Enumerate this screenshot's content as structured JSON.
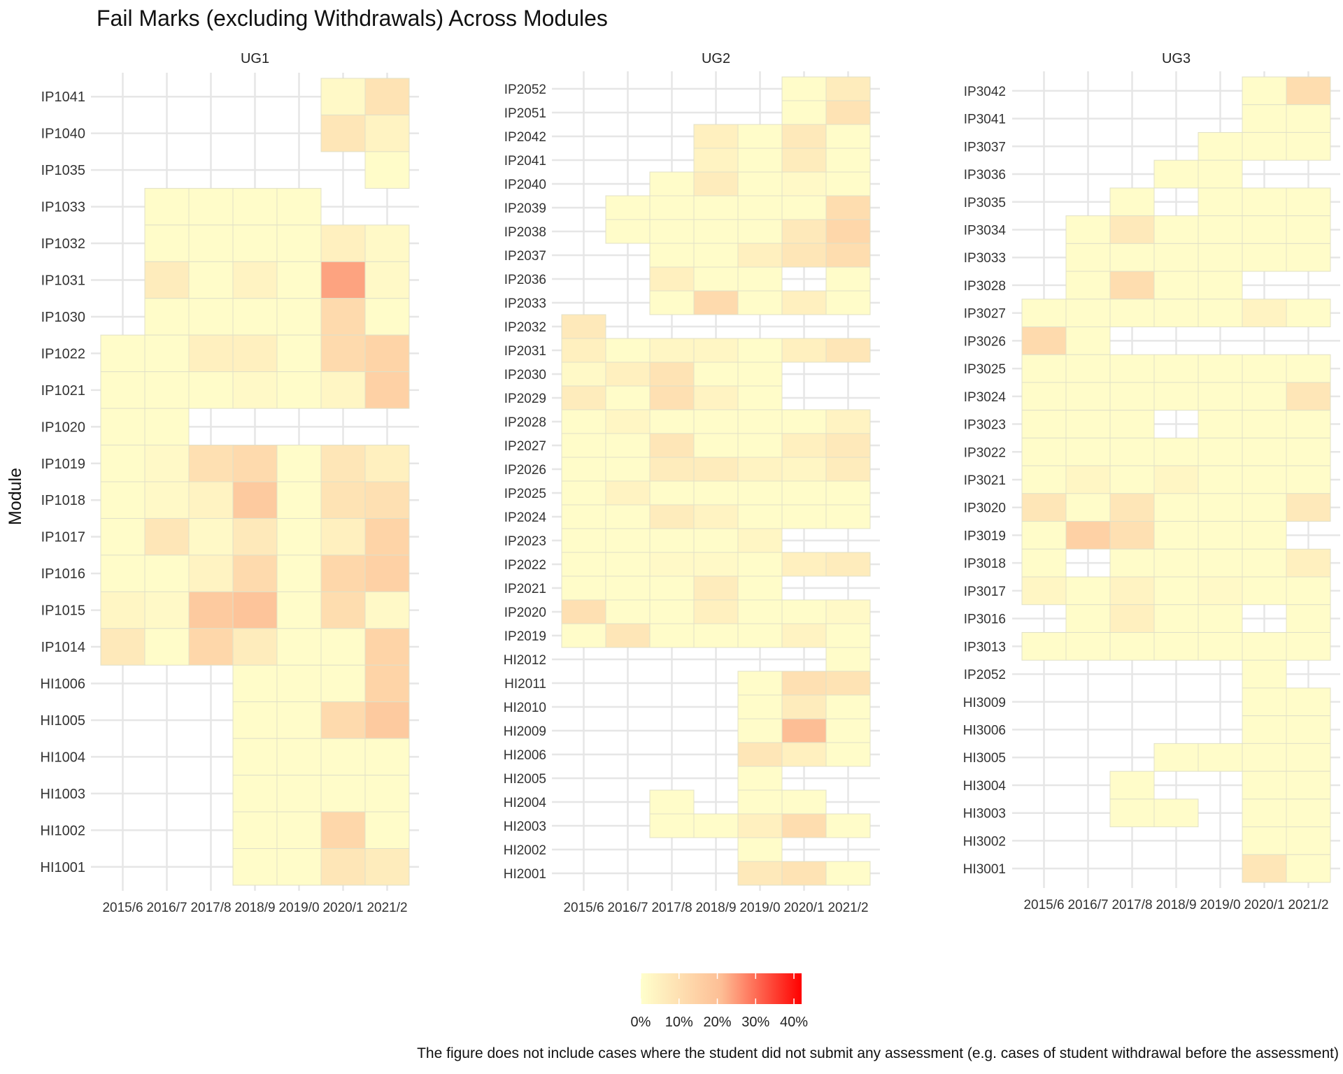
{
  "chart_data": {
    "type": "heatmap",
    "title": "Fail Marks (excluding Withdrawals) Across Modules",
    "ylabel": "Module",
    "xlabel": "",
    "caption": "The figure does not include cases where the student did not submit any assessment (e.g. cases of student withdrawal before the assessment)",
    "years": [
      "2015/6",
      "2016/7",
      "2017/8",
      "2018/9",
      "2019/0",
      "2020/1",
      "2021/2"
    ],
    "grid": true,
    "legend": {
      "position": "bottom",
      "labels": [
        "0%",
        "10%",
        "20%",
        "30%",
        "40%"
      ],
      "breaks": [
        0,
        10,
        20,
        30,
        40
      ],
      "limits": [
        0,
        42
      ],
      "colors": [
        "#ffffcc",
        "#fdbe95",
        "#ff0000"
      ]
    },
    "panels": [
      {
        "name": "UG1",
        "modules": [
          {
            "name": "IP1041",
            "values": [
              null,
              null,
              null,
              null,
              null,
              2,
              9
            ]
          },
          {
            "name": "IP1040",
            "values": [
              null,
              null,
              null,
              null,
              null,
              8,
              4
            ]
          },
          {
            "name": "IP1035",
            "values": [
              null,
              null,
              null,
              null,
              null,
              null,
              1
            ]
          },
          {
            "name": "IP1033",
            "values": [
              null,
              1,
              1,
              1,
              1,
              null,
              null
            ]
          },
          {
            "name": "IP1032",
            "values": [
              null,
              1,
              1,
              1,
              1,
              5,
              2
            ]
          },
          {
            "name": "IP1031",
            "values": [
              null,
              6,
              1,
              4,
              1,
              24,
              2
            ]
          },
          {
            "name": "IP1030",
            "values": [
              null,
              1,
              1,
              1,
              1,
              12,
              1
            ]
          },
          {
            "name": "IP1022",
            "values": [
              1,
              1,
              5,
              5,
              1,
              12,
              14
            ]
          },
          {
            "name": "IP1021",
            "values": [
              1,
              1,
              1,
              2,
              1,
              3,
              15
            ]
          },
          {
            "name": "IP1020",
            "values": [
              1,
              1,
              null,
              null,
              null,
              null,
              null
            ]
          },
          {
            "name": "IP1019",
            "values": [
              1,
              2,
              10,
              12,
              1,
              8,
              5
            ]
          },
          {
            "name": "IP1018",
            "values": [
              1,
              2,
              4,
              17,
              1,
              9,
              10
            ]
          },
          {
            "name": "IP1017",
            "values": [
              1,
              8,
              2,
              7,
              1,
              5,
              14
            ]
          },
          {
            "name": "IP1016",
            "values": [
              1,
              1,
              4,
              12,
              1,
              13,
              15
            ]
          },
          {
            "name": "IP1015",
            "values": [
              3,
              2,
              17,
              19,
              1,
              11,
              2
            ]
          },
          {
            "name": "IP1014",
            "values": [
              7,
              1,
              13,
              6,
              1,
              1,
              14
            ]
          },
          {
            "name": "HI1006",
            "values": [
              null,
              null,
              null,
              1,
              1,
              1,
              14
            ]
          },
          {
            "name": "HI1005",
            "values": [
              null,
              null,
              null,
              1,
              1,
              12,
              17
            ]
          },
          {
            "name": "HI1004",
            "values": [
              null,
              null,
              null,
              1,
              1,
              1,
              1
            ]
          },
          {
            "name": "HI1003",
            "values": [
              null,
              null,
              null,
              1,
              1,
              1,
              1
            ]
          },
          {
            "name": "HI1002",
            "values": [
              null,
              null,
              null,
              1,
              1,
              13,
              1
            ]
          },
          {
            "name": "HI1001",
            "values": [
              null,
              null,
              null,
              1,
              1,
              8,
              6
            ]
          }
        ]
      },
      {
        "name": "UG2",
        "modules": [
          {
            "name": "IP2052",
            "values": [
              null,
              null,
              null,
              null,
              null,
              1,
              6
            ]
          },
          {
            "name": "IP2051",
            "values": [
              null,
              null,
              null,
              null,
              null,
              1,
              9
            ]
          },
          {
            "name": "IP2042",
            "values": [
              null,
              null,
              null,
              5,
              1,
              7,
              1
            ]
          },
          {
            "name": "IP2041",
            "values": [
              null,
              null,
              null,
              4,
              1,
              6,
              1
            ]
          },
          {
            "name": "IP2040",
            "values": [
              null,
              null,
              1,
              6,
              1,
              2,
              1
            ]
          },
          {
            "name": "IP2039",
            "values": [
              null,
              1,
              1,
              1,
              1,
              1,
              11
            ]
          },
          {
            "name": "IP2038",
            "values": [
              null,
              1,
              1,
              1,
              1,
              7,
              13
            ]
          },
          {
            "name": "IP2037",
            "values": [
              null,
              null,
              1,
              1,
              5,
              8,
              11
            ]
          },
          {
            "name": "IP2036",
            "values": [
              null,
              null,
              5,
              1,
              1,
              null,
              1
            ]
          },
          {
            "name": "IP2033",
            "values": [
              null,
              null,
              1,
              12,
              1,
              5,
              1
            ]
          },
          {
            "name": "IP2032",
            "values": [
              7,
              null,
              null,
              null,
              null,
              null,
              null
            ]
          },
          {
            "name": "IP2031",
            "values": [
              5,
              1,
              3,
              3,
              1,
              5,
              8
            ]
          },
          {
            "name": "IP2030",
            "values": [
              2,
              5,
              9,
              1,
              1,
              null,
              null
            ]
          },
          {
            "name": "IP2029",
            "values": [
              6,
              1,
              10,
              4,
              1,
              null,
              null
            ]
          },
          {
            "name": "IP2028",
            "values": [
              1,
              3,
              1,
              1,
              1,
              1,
              4
            ]
          },
          {
            "name": "IP2027",
            "values": [
              1,
              1,
              8,
              1,
              1,
              5,
              7
            ]
          },
          {
            "name": "IP2026",
            "values": [
              1,
              1,
              6,
              6,
              4,
              3,
              6
            ]
          },
          {
            "name": "IP2025",
            "values": [
              1,
              4,
              1,
              1,
              1,
              1,
              1
            ]
          },
          {
            "name": "IP2024",
            "values": [
              1,
              1,
              6,
              4,
              1,
              1,
              1
            ]
          },
          {
            "name": "IP2023",
            "values": [
              1,
              1,
              1,
              1,
              3,
              null,
              null
            ]
          },
          {
            "name": "IP2022",
            "values": [
              1,
              1,
              2,
              2,
              1,
              5,
              6
            ]
          },
          {
            "name": "IP2021",
            "values": [
              1,
              1,
              1,
              6,
              1,
              null,
              null
            ]
          },
          {
            "name": "IP2020",
            "values": [
              10,
              1,
              1,
              5,
              1,
              1,
              2
            ]
          },
          {
            "name": "IP2019",
            "values": [
              1,
              8,
              1,
              1,
              1,
              4,
              1
            ]
          },
          {
            "name": "HI2012",
            "values": [
              null,
              null,
              null,
              null,
              null,
              null,
              1
            ]
          },
          {
            "name": "HI2011",
            "values": [
              null,
              null,
              null,
              null,
              1,
              10,
              9
            ]
          },
          {
            "name": "HI2010",
            "values": [
              null,
              null,
              null,
              null,
              1,
              6,
              1
            ]
          },
          {
            "name": "HI2009",
            "values": [
              null,
              null,
              null,
              null,
              1,
              21,
              1
            ]
          },
          {
            "name": "HI2006",
            "values": [
              null,
              null,
              null,
              null,
              8,
              5,
              1
            ]
          },
          {
            "name": "HI2005",
            "values": [
              null,
              null,
              null,
              null,
              1,
              null,
              null
            ]
          },
          {
            "name": "HI2004",
            "values": [
              null,
              null,
              1,
              null,
              1,
              1,
              null
            ]
          },
          {
            "name": "HI2003",
            "values": [
              null,
              null,
              1,
              1,
              5,
              11,
              1
            ]
          },
          {
            "name": "HI2002",
            "values": [
              null,
              null,
              null,
              null,
              1,
              null,
              null
            ]
          },
          {
            "name": "HI2001",
            "values": [
              null,
              null,
              null,
              null,
              7,
              9,
              1
            ]
          }
        ]
      },
      {
        "name": "UG3",
        "modules": [
          {
            "name": "IP3042",
            "values": [
              null,
              null,
              null,
              null,
              null,
              1,
              11
            ]
          },
          {
            "name": "IP3041",
            "values": [
              null,
              null,
              null,
              null,
              null,
              1,
              1
            ]
          },
          {
            "name": "IP3037",
            "values": [
              null,
              null,
              null,
              null,
              1,
              1,
              1
            ]
          },
          {
            "name": "IP3036",
            "values": [
              null,
              null,
              null,
              1,
              1,
              null,
              null
            ]
          },
          {
            "name": "IP3035",
            "values": [
              null,
              null,
              1,
              null,
              1,
              1,
              1
            ]
          },
          {
            "name": "IP3034",
            "values": [
              null,
              1,
              7,
              1,
              1,
              1,
              1
            ]
          },
          {
            "name": "IP3033",
            "values": [
              null,
              1,
              1,
              1,
              1,
              1,
              1
            ]
          },
          {
            "name": "IP3028",
            "values": [
              null,
              1,
              11,
              1,
              1,
              null,
              null
            ]
          },
          {
            "name": "IP3027",
            "values": [
              1,
              1,
              1,
              1,
              1,
              4,
              1
            ]
          },
          {
            "name": "IP3026",
            "values": [
              12,
              1,
              null,
              null,
              null,
              null,
              null
            ]
          },
          {
            "name": "IP3025",
            "values": [
              1,
              1,
              1,
              1,
              1,
              1,
              1
            ]
          },
          {
            "name": "IP3024",
            "values": [
              1,
              1,
              1,
              1,
              1,
              1,
              8
            ]
          },
          {
            "name": "IP3023",
            "values": [
              1,
              1,
              1,
              null,
              1,
              1,
              1
            ]
          },
          {
            "name": "IP3022",
            "values": [
              1,
              1,
              1,
              1,
              1,
              1,
              1
            ]
          },
          {
            "name": "IP3021",
            "values": [
              1,
              3,
              1,
              3,
              1,
              1,
              1
            ]
          },
          {
            "name": "IP3020",
            "values": [
              8,
              1,
              8,
              1,
              1,
              1,
              7
            ]
          },
          {
            "name": "IP3019",
            "values": [
              1,
              15,
              10,
              1,
              1,
              1,
              null
            ]
          },
          {
            "name": "IP3018",
            "values": [
              1,
              null,
              1,
              1,
              1,
              1,
              5
            ]
          },
          {
            "name": "IP3017",
            "values": [
              3,
              1,
              4,
              1,
              2,
              1,
              1
            ]
          },
          {
            "name": "IP3016",
            "values": [
              null,
              1,
              5,
              1,
              1,
              null,
              1
            ]
          },
          {
            "name": "IP3013",
            "values": [
              1,
              1,
              1,
              1,
              1,
              1,
              1
            ]
          },
          {
            "name": "IP2052",
            "values": [
              null,
              null,
              null,
              null,
              null,
              1,
              null
            ]
          },
          {
            "name": "HI3009",
            "values": [
              null,
              null,
              null,
              null,
              null,
              1,
              1
            ]
          },
          {
            "name": "HI3006",
            "values": [
              null,
              null,
              null,
              null,
              null,
              1,
              1
            ]
          },
          {
            "name": "HI3005",
            "values": [
              null,
              null,
              null,
              1,
              1,
              1,
              1
            ]
          },
          {
            "name": "HI3004",
            "values": [
              null,
              null,
              1,
              null,
              null,
              1,
              1
            ]
          },
          {
            "name": "HI3003",
            "values": [
              null,
              null,
              1,
              1,
              null,
              1,
              1
            ]
          },
          {
            "name": "HI3002",
            "values": [
              null,
              null,
              null,
              null,
              null,
              1,
              1
            ]
          },
          {
            "name": "HI3001",
            "values": [
              null,
              null,
              null,
              null,
              null,
              8,
              1
            ]
          }
        ]
      }
    ]
  }
}
